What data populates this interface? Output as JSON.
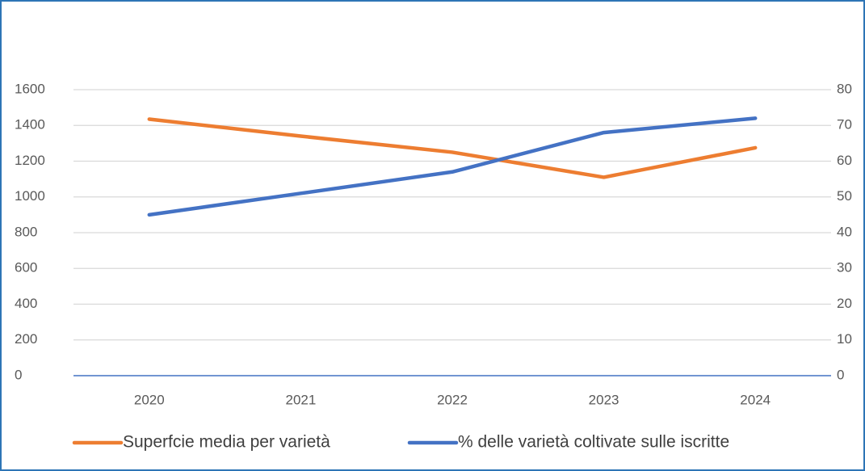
{
  "chart_data": {
    "type": "line",
    "categories": [
      "2020",
      "2021",
      "2022",
      "2023",
      "2024"
    ],
    "series": [
      {
        "name": "Superfcie media per varietà",
        "color": "#ed7d31",
        "values": [
          1435,
          1340,
          1250,
          1110,
          1275
        ]
      },
      {
        "name": "% delle varietà coltivate sulle iscritte",
        "color": "#4472c4",
        "axis": "y2",
        "values": [
          45,
          51,
          57,
          68,
          72
        ]
      }
    ],
    "ylim": [
      0,
      1600
    ],
    "yticks": [
      0,
      200,
      400,
      600,
      800,
      1000,
      1200,
      1400,
      1600
    ],
    "y2lim": [
      0,
      80
    ],
    "y2ticks": [
      0,
      10,
      20,
      30,
      40,
      50,
      60,
      70,
      80
    ],
    "grid": true,
    "legend": "bottom"
  }
}
